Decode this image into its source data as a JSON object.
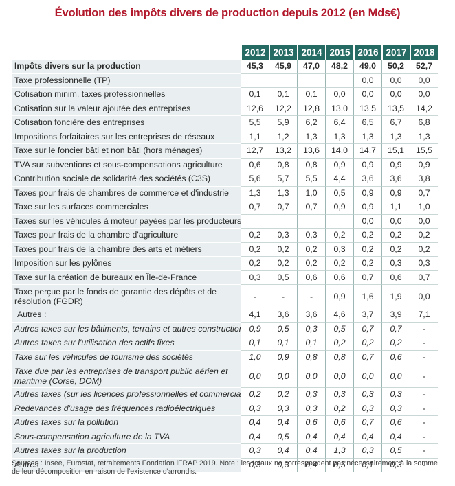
{
  "title": "Évolution des impôts divers de production depuis 2012 (en Mds€)",
  "years": [
    "2012",
    "2013",
    "2014",
    "2015",
    "2016",
    "2017",
    "2018"
  ],
  "rows": [
    {
      "label": "Impôts divers sur la production",
      "style": "bold",
      "values": [
        "45,3",
        "45,9",
        "47,0",
        "48,2",
        "49,0",
        "50,2",
        "52,7"
      ]
    },
    {
      "label": "Taxe professionnelle (TP)",
      "style": "normal",
      "values": [
        "",
        "",
        "",
        "",
        "0,0",
        "0,0",
        "0,0"
      ]
    },
    {
      "label": "Cotisation minim. taxes professionnelles",
      "style": "normal",
      "values": [
        "0,1",
        "0,1",
        "0,1",
        "0,0",
        "0,0",
        "0,0",
        "0,0"
      ]
    },
    {
      "label": "Cotisation sur la valeur ajoutée des entreprises",
      "style": "normal",
      "values": [
        "12,6",
        "12,2",
        "12,8",
        "13,0",
        "13,5",
        "13,5",
        "14,2"
      ]
    },
    {
      "label": "Cotisation foncière des entreprises",
      "style": "normal",
      "values": [
        "5,5",
        "5,9",
        "6,2",
        "6,4",
        "6,5",
        "6,7",
        "6,8"
      ]
    },
    {
      "label": "Impositions forfaitaires sur les entreprises de réseaux",
      "style": "normal",
      "values": [
        "1,1",
        "1,2",
        "1,3",
        "1,3",
        "1,3",
        "1,3",
        "1,3"
      ]
    },
    {
      "label": "Taxe sur le foncier bâti et non bâti (hors ménages)",
      "style": "normal",
      "values": [
        "12,7",
        "13,2",
        "13,6",
        "14,0",
        "14,7",
        "15,1",
        "15,5"
      ]
    },
    {
      "label": "TVA sur subventions et sous-compensations agriculture",
      "style": "normal",
      "values": [
        "0,6",
        "0,8",
        "0,8",
        "0,9",
        "0,9",
        "0,9",
        "0,9"
      ]
    },
    {
      "label": "Contribution sociale de solidarité des sociétés (C3S)",
      "style": "normal",
      "values": [
        "5,6",
        "5,7",
        "5,5",
        "4,4",
        "3,6",
        "3,6",
        "3,8"
      ]
    },
    {
      "label": "Taxes pour frais de chambres de commerce et d'industrie",
      "style": "normal",
      "values": [
        "1,3",
        "1,3",
        "1,0",
        "0,5",
        "0,9",
        "0,9",
        "0,7"
      ]
    },
    {
      "label": "Taxe sur les surfaces commerciales",
      "style": "normal",
      "values": [
        "0,7",
        "0,7",
        "0,7",
        "0,9",
        "0,9",
        "1,1",
        "1,0"
      ]
    },
    {
      "label": "Taxes sur les véhicules à moteur payées par les producteurs",
      "style": "normal",
      "values": [
        "",
        "",
        "",
        "",
        "0,0",
        "0,0",
        "0,0"
      ]
    },
    {
      "label": "Taxes pour frais de la chambre d'agriculture",
      "style": "normal",
      "values": [
        "0,2",
        "0,3",
        "0,3",
        "0,2",
        "0,2",
        "0,2",
        "0,2"
      ]
    },
    {
      "label": "Taxes pour frais de la chambre des arts et métiers",
      "style": "normal",
      "values": [
        "0,2",
        "0,2",
        "0,2",
        "0,3",
        "0,2",
        "0,2",
        "0,2"
      ]
    },
    {
      "label": "Imposition sur les pylônes",
      "style": "normal",
      "values": [
        "0,2",
        "0,2",
        "0,2",
        "0,2",
        "0,2",
        "0,3",
        "0,3"
      ]
    },
    {
      "label": "Taxe sur la création de bureaux en Île-de-France",
      "style": "normal",
      "values": [
        "0,3",
        "0,5",
        "0,6",
        "0,6",
        "0,7",
        "0,6",
        "0,7"
      ]
    },
    {
      "label": "Taxe perçue par le fonds de garantie des dépôts et de résolution (FGDR)",
      "style": "tall",
      "values": [
        "-",
        "-",
        "-",
        "0,9",
        "1,6",
        "1,9",
        "0,0"
      ]
    },
    {
      "label": "Autres :",
      "style": "autres",
      "values": [
        "4,1",
        "3,6",
        "3,6",
        "4,6",
        "3,7",
        "3,9",
        "7,1"
      ]
    },
    {
      "label": "Autres taxes sur les bâtiments, terrains et autres constructions",
      "style": "italic",
      "values": [
        "0,9",
        "0,5",
        "0,3",
        "0,5",
        "0,7",
        "0,7",
        "-"
      ]
    },
    {
      "label": "Autres taxes sur l'utilisation des actifs fixes",
      "style": "italic",
      "values": [
        "0,1",
        "0,1",
        "0,1",
        "0,2",
        "0,2",
        "0,2",
        "-"
      ]
    },
    {
      "label": "Taxe sur les véhicules de tourisme des sociétés",
      "style": "italic",
      "values": [
        "1,0",
        "0,9",
        "0,8",
        "0,8",
        "0,7",
        "0,6",
        "-"
      ]
    },
    {
      "label": "Taxe due par les entreprises de transport public aérien et maritime (Corse, DOM)",
      "style": "italic-tall",
      "values": [
        "0,0",
        "0,0",
        "0,0",
        "0,0",
        "0,0",
        "0,0",
        "-"
      ]
    },
    {
      "label": "Autres taxes (sur les licences professionnelles et commerciales)",
      "style": "italic",
      "values": [
        "0,2",
        "0,2",
        "0,3",
        "0,3",
        "0,3",
        "0,3",
        "-"
      ]
    },
    {
      "label": "Redevances d'usage des fréquences radioélectriques",
      "style": "italic",
      "values": [
        "0,3",
        "0,3",
        "0,3",
        "0,2",
        "0,3",
        "0,3",
        "-"
      ]
    },
    {
      "label": "Autres taxes sur la pollution",
      "style": "italic",
      "values": [
        "0,4",
        "0,4",
        "0,6",
        "0,6",
        "0,7",
        "0,6",
        "-"
      ]
    },
    {
      "label": "Sous-compensation agriculture de la TVA",
      "style": "italic",
      "values": [
        "0,4",
        "0,5",
        "0,4",
        "0,4",
        "0,4",
        "0,4",
        "-"
      ]
    },
    {
      "label": "Autres taxes sur la production",
      "style": "italic",
      "values": [
        "0,3",
        "0,4",
        "0,4",
        "1,3",
        "0,3",
        "0,5",
        "-"
      ]
    },
    {
      "label": "Autres",
      "style": "italic",
      "values": [
        "0,3",
        "0,3",
        "0,4",
        "0,5",
        "0,1",
        "0,3",
        "-"
      ]
    }
  ],
  "footnote": "Sources : Insee, Eurostat, retraitements Fondation iFRAP 2019. Note : les totaux ne correspondent pas nécessairement à la somme de leur décomposition en raison de l'existence d'arrondis.",
  "colors": {
    "title": "#b2182b",
    "header_bg": "#256b64",
    "label_bg": "#e9eff0"
  }
}
